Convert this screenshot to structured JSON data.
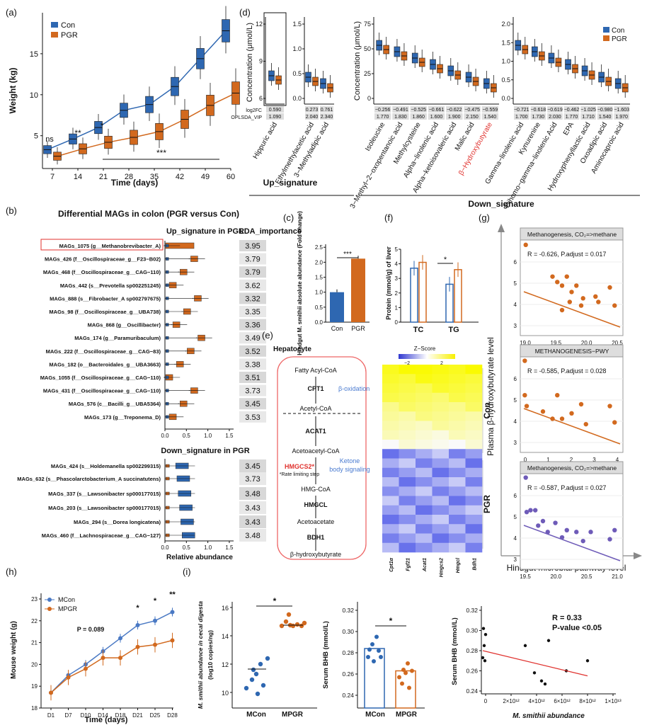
{
  "colors": {
    "con": "#2E67B1",
    "pgr": "#D2691E",
    "purple": "#6E5BB8",
    "red": "#E0322E"
  },
  "a": {
    "label": "(a)",
    "ylabel": "Weight (kg)",
    "xlabel": "Time (days)",
    "ticks_x": [
      "7",
      "14",
      "21",
      "28",
      "35",
      "42",
      "49",
      "60"
    ],
    "ticks_y": [
      "5",
      "10",
      "15"
    ],
    "legend": [
      "Con",
      "PGR"
    ],
    "ns": "ns",
    "sig14": "**",
    "sig21": "*",
    "sig_long": "***",
    "chart_data": {
      "type": "line",
      "categories": [
        "7",
        "14",
        "21",
        "28",
        "35",
        "42",
        "49",
        "60"
      ],
      "series": [
        {
          "name": "Con",
          "values": [
            3.3,
            4.6,
            6.0,
            8.1,
            8.8,
            11.0,
            14.4,
            17.8
          ]
        },
        {
          "name": "PGR",
          "values": [
            2.5,
            3.4,
            4.2,
            4.8,
            5.5,
            7.0,
            8.7,
            10.2
          ]
        }
      ],
      "ylim": [
        1,
        20
      ]
    }
  },
  "b": {
    "label": "(b)",
    "title": "Differential MAGs in colon (PGR versus Con)",
    "up_title": "Up_signature in PGR",
    "down_title": "Down_signature in PGR",
    "lda_title": "LDA_importance",
    "xlabel": "Relative abundance",
    "xticks": [
      "0.0",
      "0.5",
      "1.0",
      "1.5"
    ],
    "up": [
      {
        "n": "MAGs_1075 (g__Methanobrevibacter_A)",
        "v": "3.95"
      },
      {
        "n": "MAGs_426 (f__Oscillospiraceae_g__F23−B02)",
        "v": "3.79"
      },
      {
        "n": "MAGs_468 (f__Oscillospiraceae_g__CAG−110)",
        "v": "3.79"
      },
      {
        "n": "MAGs_442 (s__Prevotella sp002251245)",
        "v": "3.62"
      },
      {
        "n": "MAGs_888 (s__Fibrobacter_A sp002797675)",
        "v": "3.32"
      },
      {
        "n": "MAGs_98 (f__Oscillospiraceae_g__UBA738)",
        "v": "3.35"
      },
      {
        "n": "MAGs_868 (g__Oscillibacter)",
        "v": "3.36"
      },
      {
        "n": "MAGs_174 (g__Paramuribaculum)",
        "v": "3.49"
      },
      {
        "n": "MAGs_222 (f__Oscillospiraceae_g__CAG−83)",
        "v": "3.52"
      },
      {
        "n": "MAGs_182 (o__Bacteroidales_g__UBA3663)",
        "v": "3.38"
      },
      {
        "n": "MAGs_1055 (f__Oscillospiraceae_g__CAG−110)",
        "v": "3.51"
      },
      {
        "n": "MAGs_431 (f__Oscillospiraceae_g__CAG−110)",
        "v": "3.73"
      },
      {
        "n": "MAGs_576 (c__Bacilli_g__UBA5364)",
        "v": "3.45"
      },
      {
        "n": "MAGs_173 (g__Treponema_D)",
        "v": "3.53"
      }
    ],
    "down": [
      {
        "n": "MAGs_424 (s__Holdemanella sp002299315)",
        "v": "3.45"
      },
      {
        "n": "MAGs_632 (s__Phascolarctobacterium_A succinatutens)",
        "v": "3.73"
      },
      {
        "n": "MAGs_337 (s__Lawsonibacter sp000177015)",
        "v": "3.48"
      },
      {
        "n": "MAGs_203 (s__Lawsonibacter sp000177015)",
        "v": "3.43"
      },
      {
        "n": "MAGs_294 (s__Dorea longicatena)",
        "v": "3.43"
      },
      {
        "n": "MAGs_460 (f__Lachnospiraceae_g__CAG−127)",
        "v": "3.48"
      }
    ]
  },
  "c": {
    "label": "(c)",
    "ylabel": "Hindgut M. smithii absolute abundance (Fold change)",
    "yticks": [
      "0.0",
      "0.5",
      "1.0",
      "1.5",
      "2.0",
      "2.5"
    ],
    "sig": "***",
    "chart_data": {
      "type": "bar",
      "categories": [
        "Con",
        "PGR"
      ],
      "values": [
        1.0,
        2.12
      ],
      "ylim": [
        0,
        2.6
      ]
    }
  },
  "d": {
    "label": "(d)",
    "ylabel": "Concentration (μmol/L)",
    "up_label": "Up_signature",
    "down_label": "Down_signature",
    "legend": [
      "Con",
      "PGR"
    ],
    "row_names": [
      "log2FC",
      "OPLSDA_VIP"
    ],
    "p1": {
      "names": [
        "Hippuric acid"
      ],
      "fc": [
        "0.590"
      ],
      "vip": [
        "1.090"
      ],
      "yticks": [
        "6",
        "9",
        "12"
      ]
    },
    "p2": {
      "names": [
        "Ethylmethylacetic acid",
        "3−Methyladipic acid"
      ],
      "fc": [
        "0.273",
        "0.761"
      ],
      "vip": [
        "2.040",
        "2.340"
      ],
      "yticks": [
        "0.0",
        "0.5",
        "1.0",
        "1.5"
      ]
    },
    "p3": {
      "names": [
        "Isoleucine",
        "3−Methyl−2−oxopentanoic acid",
        "Methylcysteine",
        "Alpha−linolenic acid",
        "Alpha−ketoisovaleric acid",
        "Malic acid",
        "β−Hydroxybutyrate"
      ],
      "fc": [
        "−0.256",
        "−0.491",
        "−0.525",
        "−0.661",
        "−0.622",
        "−0.475",
        "−0.559"
      ],
      "vip": [
        "1.770",
        "1.830",
        "1.860",
        "1.600",
        "1.900",
        "2.150",
        "1.540"
      ],
      "yticks": [
        "0",
        "25",
        "50",
        "75"
      ]
    },
    "p4": {
      "names": [
        "Gamma−linolenic acid",
        "Kynurenine",
        "Dihomo−gamma−linolenic Acid",
        "EPA",
        "Hydroxyphenyllactic acid",
        "Oxoadipic acid",
        "Aminocaproic acid"
      ],
      "fc": [
        "−0.721",
        "−0.618",
        "−0.619",
        "−0.462",
        "−1.025",
        "−0.980",
        "−1.603"
      ],
      "vip": [
        "1.700",
        "1.730",
        "2.030",
        "1.770",
        "1.710",
        "1.540",
        "1.970"
      ],
      "yticks": [
        "0.0",
        "0.5",
        "1.0",
        "1.5",
        "2.0"
      ]
    }
  },
  "e": {
    "label": "(e)",
    "hep": "Hepatocyte",
    "zscore": "Z−Score",
    "zticks": [
      "−2",
      "2"
    ],
    "steps": [
      "Fatty Acyl-CoA",
      "CPT1",
      "β-oxidation",
      "Acetyl-CoA",
      "ACAT1",
      "Acetoacetyl-CoA",
      "HMGCS2*",
      "*Rate limiting step",
      "Ketone body signaling",
      "HMG-CoA",
      "HMGCL",
      "Acetoacetate",
      "BDH1",
      "β-hydroxybutyrate"
    ],
    "genes": [
      "Cpt1α",
      "Fgf21",
      "Acat1",
      "Hmgcs2",
      "Hmgcl",
      "Bdh1"
    ],
    "groups": [
      "Con",
      "PGR"
    ]
  },
  "f": {
    "label": "(f)",
    "ylabel": "Protein (mmol/g) of liver",
    "yticks": [
      "0",
      "1",
      "2",
      "3",
      "4",
      "5"
    ],
    "sig": "*",
    "chart_data": {
      "type": "bar",
      "categories": [
        "TC",
        "TG"
      ],
      "series": [
        {
          "name": "Con",
          "values": [
            3.7,
            2.6
          ]
        },
        {
          "name": "PGR",
          "values": [
            4.1,
            3.6
          ]
        }
      ],
      "ylim": [
        0,
        5
      ]
    }
  },
  "g": {
    "label": "(g)",
    "ylabel": "Plasma β-hydroxybutyrate level",
    "xlabel": "Hindgut microbial pathway level",
    "p1": {
      "title": "Methanogenesis, CO₂=>methane",
      "stat": "R = -0.626, P.adjust = 0.017",
      "xticks": [
        "19.0",
        "19.5",
        "20.0",
        "20.5"
      ],
      "yticks": [
        "3",
        "4",
        "5",
        "6"
      ]
    },
    "p2": {
      "title": "METHANOGENESIS−PWY",
      "stat": "R = -0.585, P.adjust = 0.028",
      "xticks": [
        "0",
        "1",
        "2",
        "3",
        "4"
      ],
      "yticks": [
        "3",
        "4",
        "5",
        "6"
      ]
    },
    "p3": {
      "title": "Methanogenesis, CO₂=>methane",
      "stat": "R = -0.587, P.adjust = 0.027",
      "xticks": [
        "19.5",
        "20.0",
        "20.5",
        "21.0"
      ],
      "yticks": [
        "3",
        "4",
        "5",
        "6"
      ]
    }
  },
  "h": {
    "label": "(h)",
    "ylabel": "Mouse weight (g)",
    "xlabel": "Time (days)",
    "legend": [
      "MCon",
      "MPGR"
    ],
    "p_text": "P = 0.089",
    "ticks_x": [
      "D1",
      "D7",
      "D10",
      "D14",
      "D18",
      "D21",
      "D25",
      "D28"
    ],
    "yticks": [
      "18",
      "19",
      "20",
      "21",
      "22",
      "23"
    ],
    "sig": [
      "*",
      "*",
      "**"
    ],
    "chart_data": {
      "type": "line",
      "categories": [
        "D1",
        "D7",
        "D10",
        "D14",
        "D18",
        "D21",
        "D25",
        "D28"
      ],
      "series": [
        {
          "name": "MCon",
          "values": [
            18.7,
            19.5,
            20.0,
            20.6,
            21.2,
            21.8,
            22.0,
            22.4
          ]
        },
        {
          "name": "MPGR",
          "values": [
            18.7,
            19.4,
            19.8,
            20.3,
            20.3,
            20.8,
            20.9,
            21.1
          ]
        }
      ],
      "ylim": [
        18,
        23
      ]
    }
  },
  "i": {
    "label": "(i)",
    "y1": "M. smithii abundance in cecal digesta (log10 copies/ng)",
    "y2": "Serum BHB (mmol/L)",
    "y3": "Serum BHB (mmol/L)",
    "x3": "M. smithii abundance",
    "groups": [
      "MCon",
      "MPGR"
    ],
    "sig": "*",
    "r": "R = 0.33",
    "p": "P-value <0.05",
    "yt1": [
      "10",
      "12",
      "14",
      "16"
    ],
    "yt2": [
      "0.24",
      "0.26",
      "0.28",
      "0.30",
      "0.32"
    ],
    "yt3": [
      "0.24",
      "0.26",
      "0.28",
      "0.30",
      "0.32"
    ],
    "xt3": [
      "0",
      "2×10¹²",
      "4×10¹²",
      "6×10¹²",
      "8×10¹²",
      "1×10¹³"
    ]
  }
}
